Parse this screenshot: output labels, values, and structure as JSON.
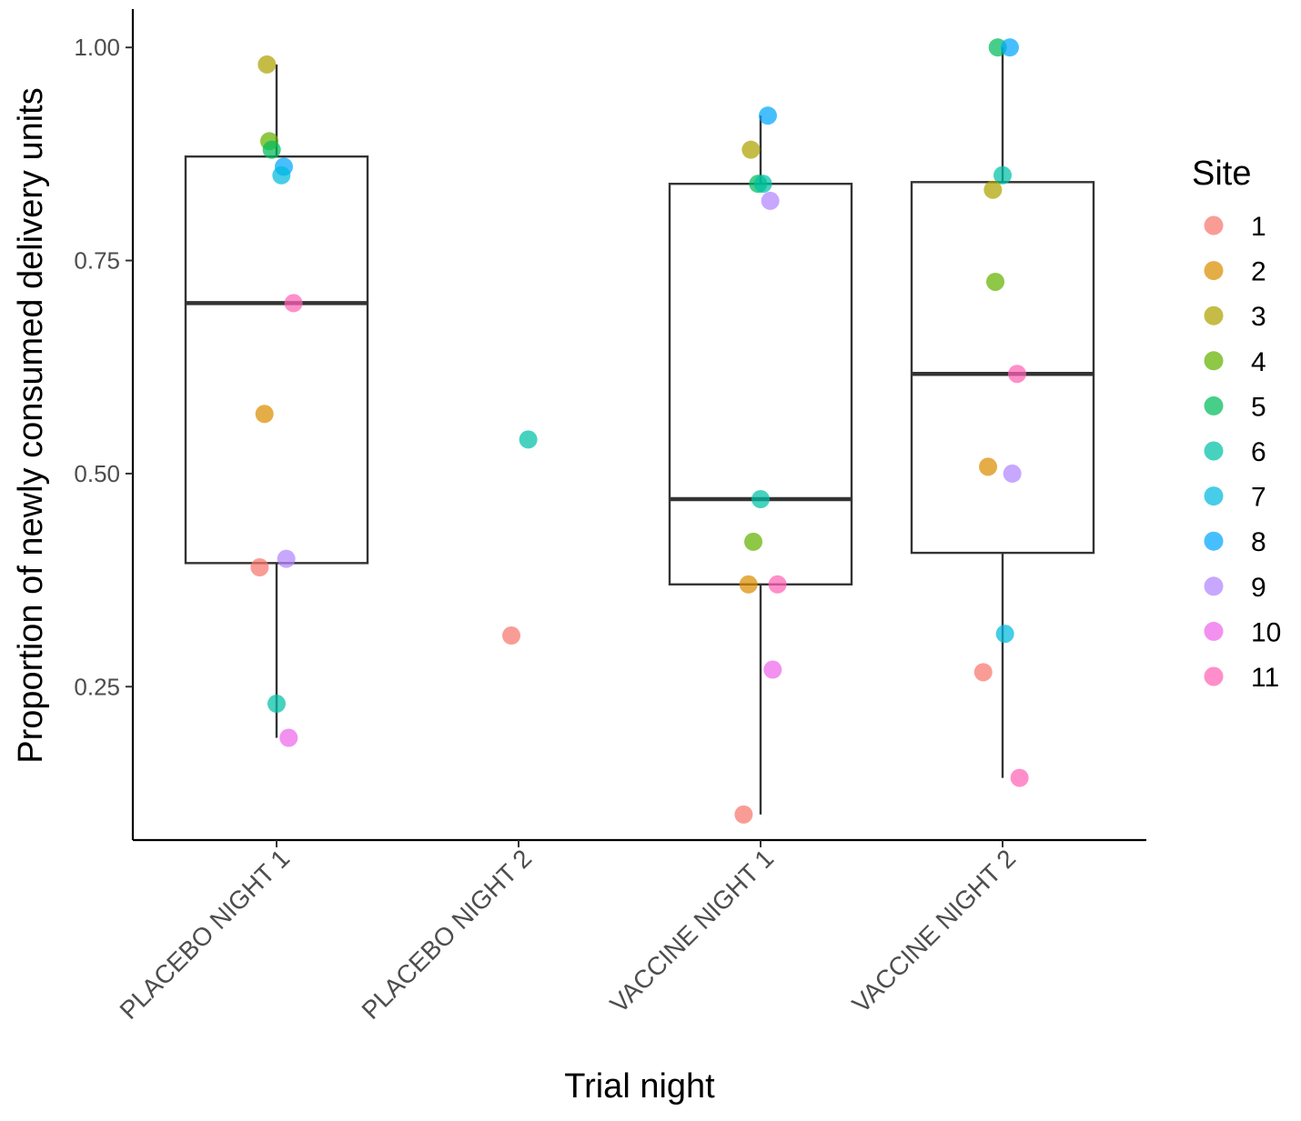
{
  "chart_data": {
    "type": "box-with-jitter",
    "xlabel": "Trial night",
    "ylabel": "Proportion of newly consumed delivery units",
    "ylim": [
      0.07,
      1.045
    ],
    "y_ticks": [
      {
        "value": 0.25,
        "label": "0.25"
      },
      {
        "value": 0.5,
        "label": "0.50"
      },
      {
        "value": 0.75,
        "label": "0.75"
      },
      {
        "value": 1.0,
        "label": "1.00"
      }
    ],
    "categories": [
      "PLACEBO NIGHT 1",
      "PLACEBO NIGHT 2",
      "VACCINE NIGHT 1",
      "VACCINE NIGHT 2"
    ],
    "boxes": [
      {
        "category": "PLACEBO NIGHT 1",
        "q1": 0.395,
        "median": 0.7,
        "q3": 0.872,
        "whisker_low": 0.19,
        "whisker_high": 0.98
      },
      null,
      {
        "category": "VACCINE NIGHT 1",
        "q1": 0.37,
        "median": 0.47,
        "q3": 0.84,
        "whisker_low": 0.1,
        "whisker_high": 0.92
      },
      {
        "category": "VACCINE NIGHT 2",
        "q1": 0.407,
        "median": 0.617,
        "q3": 0.842,
        "whisker_low": 0.143,
        "whisker_high": 1.0
      }
    ],
    "points": [
      {
        "category": 0,
        "site": "3",
        "y": 0.98,
        "jitter": -0.04
      },
      {
        "category": 0,
        "site": "4",
        "y": 0.89,
        "jitter": -0.03
      },
      {
        "category": 0,
        "site": "5",
        "y": 0.88,
        "jitter": -0.02
      },
      {
        "category": 0,
        "site": "8",
        "y": 0.86,
        "jitter": 0.03
      },
      {
        "category": 0,
        "site": "7",
        "y": 0.85,
        "jitter": 0.02
      },
      {
        "category": 0,
        "site": "11",
        "y": 0.7,
        "jitter": 0.07
      },
      {
        "category": 0,
        "site": "2",
        "y": 0.57,
        "jitter": -0.05
      },
      {
        "category": 0,
        "site": "9",
        "y": 0.4,
        "jitter": 0.04
      },
      {
        "category": 0,
        "site": "1",
        "y": 0.39,
        "jitter": -0.07
      },
      {
        "category": 0,
        "site": "6",
        "y": 0.23,
        "jitter": 0.0
      },
      {
        "category": 0,
        "site": "10",
        "y": 0.19,
        "jitter": 0.05
      },
      {
        "category": 1,
        "site": "6",
        "y": 0.54,
        "jitter": 0.04
      },
      {
        "category": 1,
        "site": "1",
        "y": 0.31,
        "jitter": -0.03
      },
      {
        "category": 2,
        "site": "8",
        "y": 0.92,
        "jitter": 0.03
      },
      {
        "category": 2,
        "site": "3",
        "y": 0.88,
        "jitter": -0.04
      },
      {
        "category": 2,
        "site": "5",
        "y": 0.84,
        "jitter": -0.01
      },
      {
        "category": 2,
        "site": "6",
        "y": 0.84,
        "jitter": 0.01
      },
      {
        "category": 2,
        "site": "9",
        "y": 0.82,
        "jitter": 0.04
      },
      {
        "category": 2,
        "site": "6",
        "y": 0.47,
        "jitter": 0.0
      },
      {
        "category": 2,
        "site": "4",
        "y": 0.42,
        "jitter": -0.03
      },
      {
        "category": 2,
        "site": "2",
        "y": 0.37,
        "jitter": -0.05
      },
      {
        "category": 2,
        "site": "11",
        "y": 0.37,
        "jitter": 0.07
      },
      {
        "category": 2,
        "site": "10",
        "y": 0.27,
        "jitter": 0.05
      },
      {
        "category": 2,
        "site": "1",
        "y": 0.1,
        "jitter": -0.07
      },
      {
        "category": 3,
        "site": "5",
        "y": 1.0,
        "jitter": -0.02
      },
      {
        "category": 3,
        "site": "8",
        "y": 1.0,
        "jitter": 0.03
      },
      {
        "category": 3,
        "site": "6",
        "y": 0.85,
        "jitter": 0.0
      },
      {
        "category": 3,
        "site": "3",
        "y": 0.833,
        "jitter": -0.04
      },
      {
        "category": 3,
        "site": "4",
        "y": 0.725,
        "jitter": -0.03
      },
      {
        "category": 3,
        "site": "11",
        "y": 0.617,
        "jitter": 0.06
      },
      {
        "category": 3,
        "site": "2",
        "y": 0.508,
        "jitter": -0.06
      },
      {
        "category": 3,
        "site": "9",
        "y": 0.5,
        "jitter": 0.04
      },
      {
        "category": 3,
        "site": "7",
        "y": 0.312,
        "jitter": 0.01
      },
      {
        "category": 3,
        "site": "1",
        "y": 0.267,
        "jitter": -0.08
      },
      {
        "category": 3,
        "site": "11",
        "y": 0.143,
        "jitter": 0.07
      }
    ],
    "legend": {
      "title": "Site",
      "position": "right",
      "items": [
        {
          "label": "1",
          "color": "#F8766D"
        },
        {
          "label": "2",
          "color": "#DB8E00"
        },
        {
          "label": "3",
          "color": "#AEA200"
        },
        {
          "label": "4",
          "color": "#64B200"
        },
        {
          "label": "5",
          "color": "#00BD5C"
        },
        {
          "label": "6",
          "color": "#00C1A7"
        },
        {
          "label": "7",
          "color": "#00BADE"
        },
        {
          "label": "8",
          "color": "#00A6FF"
        },
        {
          "label": "9",
          "color": "#B385FF"
        },
        {
          "label": "10",
          "color": "#EF67EB"
        },
        {
          "label": "11",
          "color": "#FF63B6"
        }
      ]
    }
  }
}
